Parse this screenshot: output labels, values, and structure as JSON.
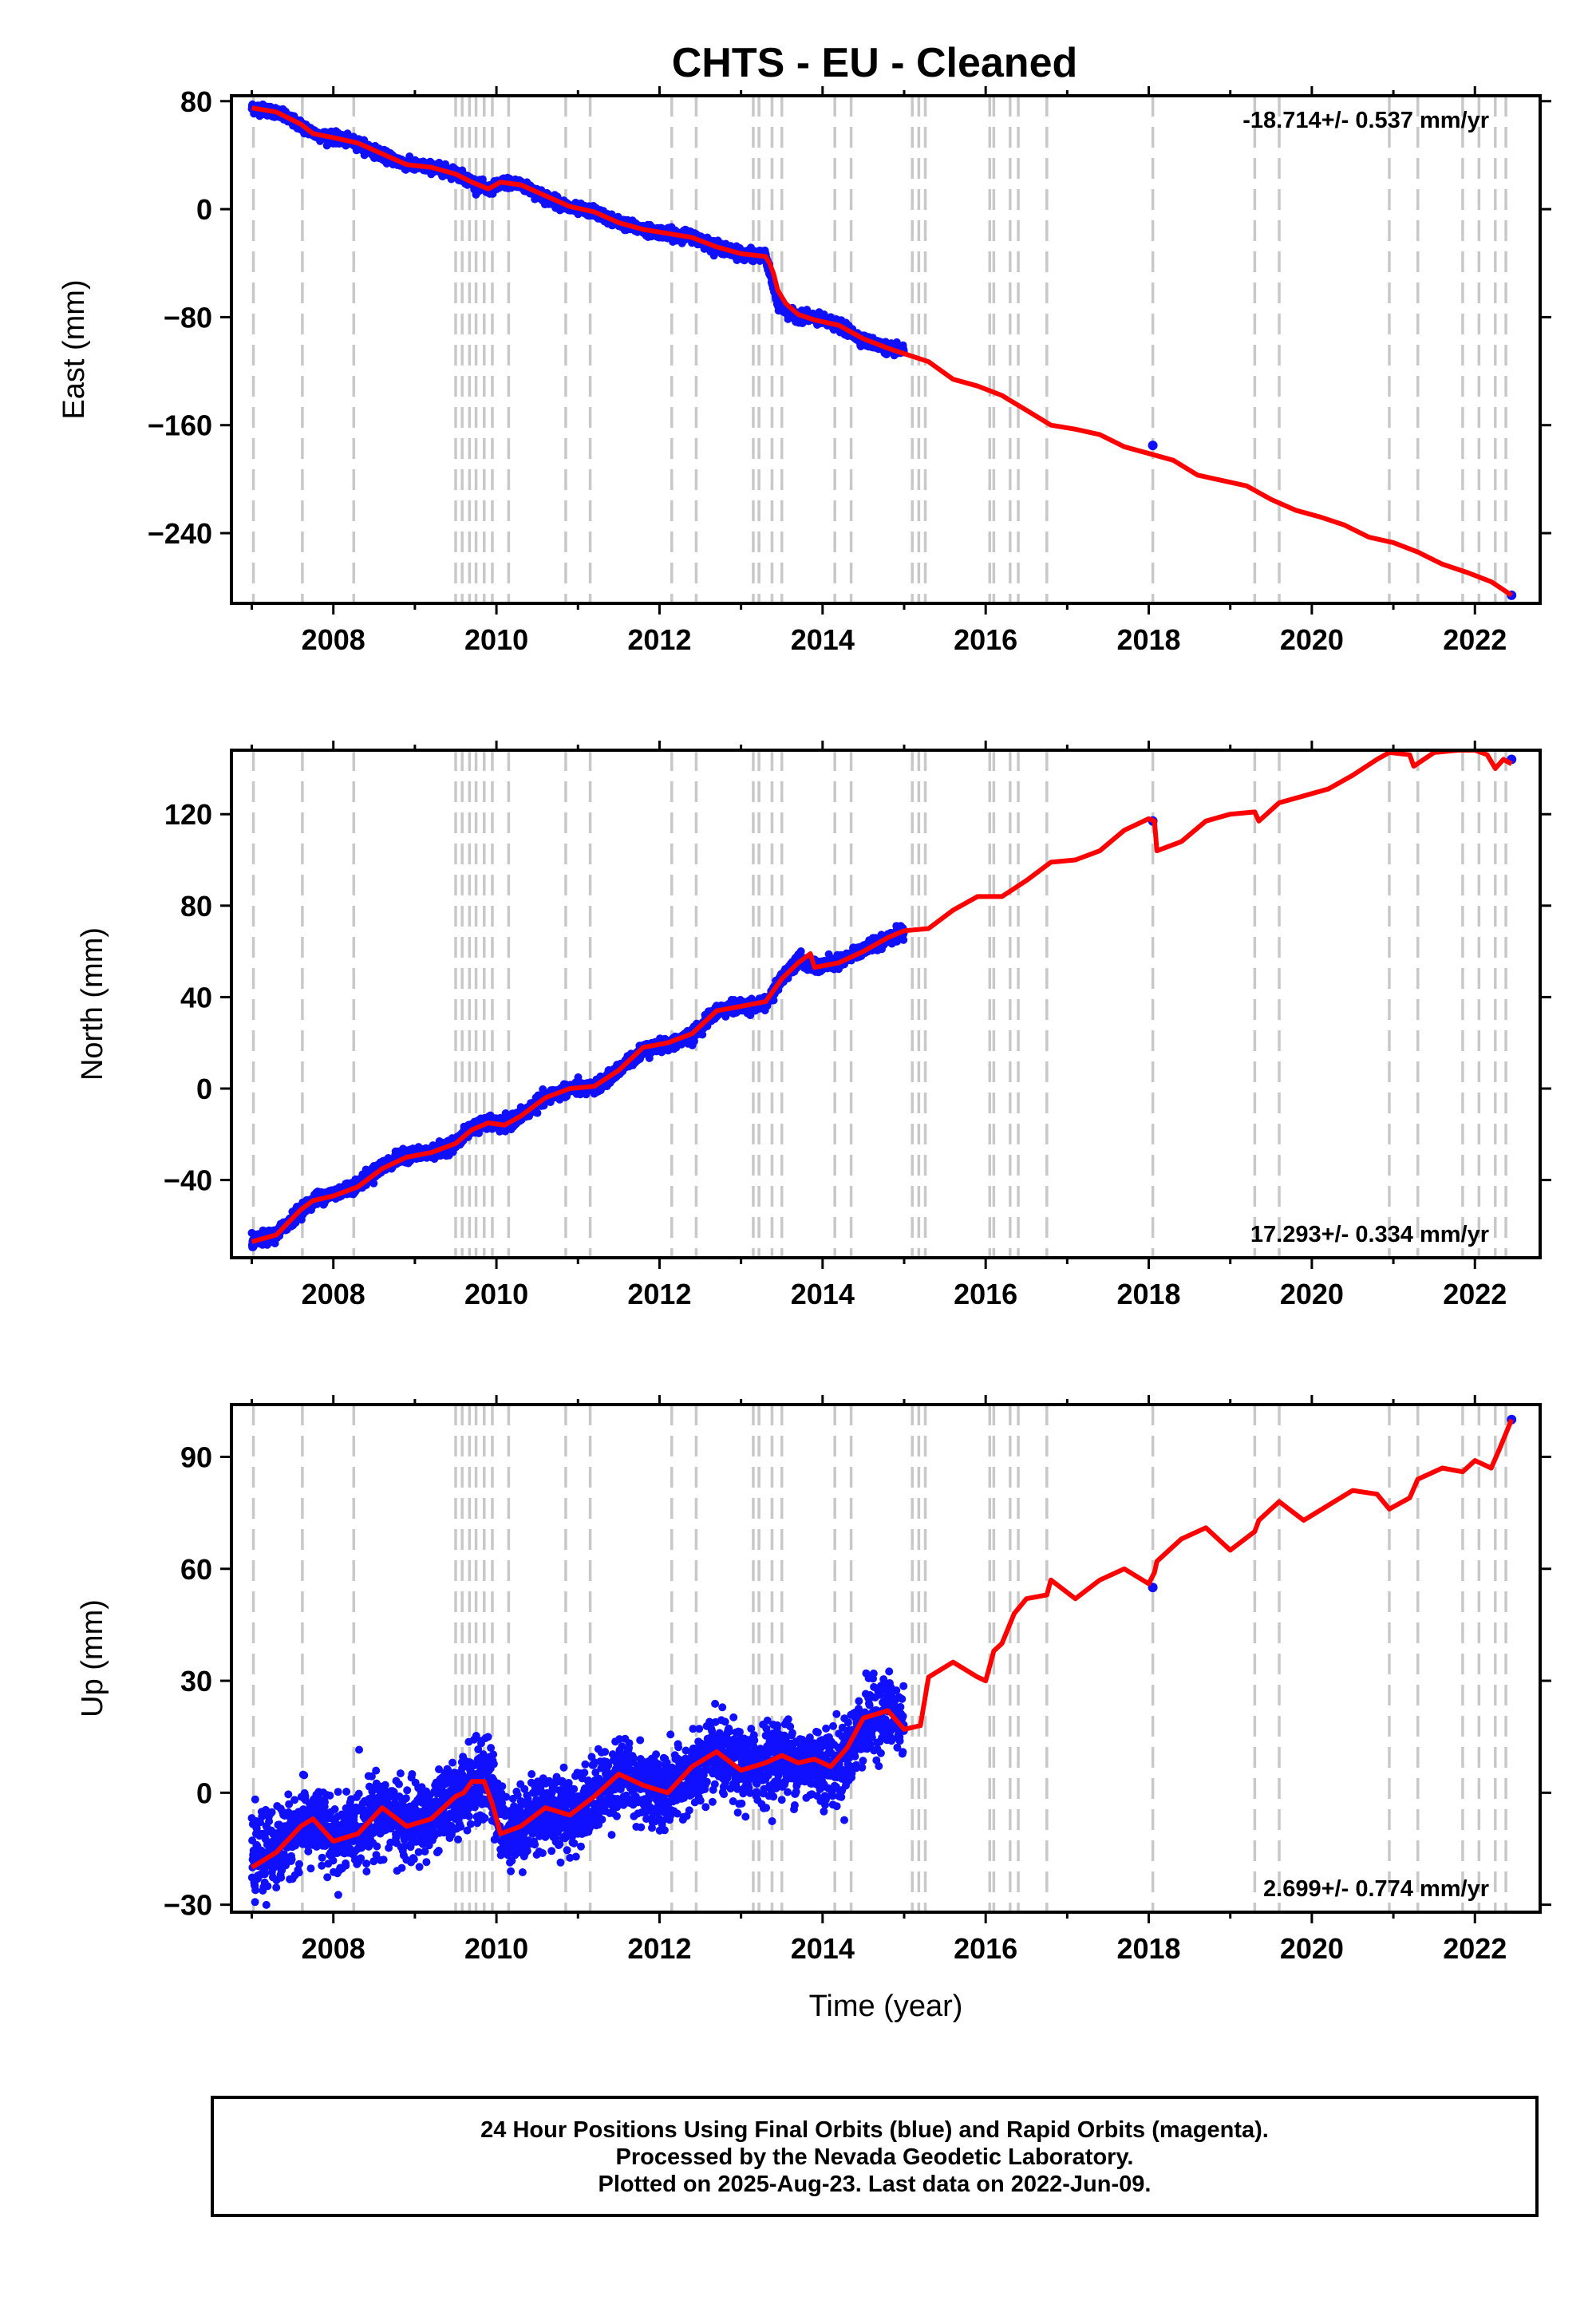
{
  "chart_data": [
    {
      "type": "line",
      "title": "CHTS  - EU - Cleaned",
      "ylabel": "East (mm)",
      "xlabel": "",
      "rate": "-18.714+/- 0.537 mm/yr",
      "rate_pos": "top-right",
      "xlim": [
        2006.75,
        2022.8
      ],
      "ylim": [
        -292,
        84
      ],
      "yticks": [
        80,
        0,
        -80,
        -160,
        -240
      ],
      "xticks": [
        2008,
        2010,
        2012,
        2014,
        2016,
        2018,
        2020,
        2022
      ],
      "grid": false,
      "series": [
        {
          "color": "#1010ff",
          "style": "points",
          "x": [
            2007.0,
            2007.3,
            2007.6,
            2007.8,
            2008.0,
            2008.3,
            2008.6,
            2008.9,
            2009.2,
            2009.5,
            2009.7,
            2009.9,
            2010.1,
            2010.3,
            2010.6,
            2010.9,
            2011.2,
            2011.5,
            2011.8,
            2012.1,
            2012.4,
            2012.7,
            2013.0,
            2013.3,
            2013.45,
            2013.6,
            2013.9,
            2014.2,
            2014.5,
            2014.8,
            2015.0,
            2018.05,
            2022.45
          ],
          "y": [
            75,
            72,
            62,
            55,
            53,
            49,
            40,
            33,
            31,
            27,
            20,
            14,
            20,
            18,
            9,
            1,
            -2,
            -10,
            -15,
            -18,
            -20,
            -28,
            -33,
            -35,
            -70,
            -78,
            -81,
            -86,
            -97,
            -103,
            -105,
            -175,
            -286
          ],
          "spread": [
            3.5,
            3.5,
            3.5,
            3.5,
            3.5,
            3.5,
            3.5,
            3.5,
            3.5,
            3.5,
            3.5,
            3.5,
            3.5,
            3.5,
            3.5,
            3.5,
            3.5,
            3.5,
            3.5,
            3.5,
            3.5,
            3.5,
            3.5,
            3.5,
            3.5,
            3.5,
            3.5,
            3.5,
            3.5,
            3.5,
            3.5,
            0,
            0
          ]
        },
        {
          "color": "#ff0000",
          "style": "line",
          "x": [
            2007.0,
            2007.3,
            2007.6,
            2007.75,
            2008.0,
            2008.3,
            2008.6,
            2008.9,
            2009.2,
            2009.5,
            2009.7,
            2009.9,
            2010.05,
            2010.3,
            2010.6,
            2010.9,
            2011.2,
            2011.5,
            2011.8,
            2012.1,
            2012.4,
            2012.7,
            2013.0,
            2013.3,
            2013.35,
            2013.4,
            2013.45,
            2013.55,
            2013.7,
            2013.9,
            2014.2,
            2014.5,
            2014.8,
            2015.0,
            2015.3,
            2015.6,
            2015.9,
            2016.2,
            2016.5,
            2016.8,
            2017.1,
            2017.4,
            2017.7,
            2018.0,
            2018.3,
            2018.6,
            2018.9,
            2019.2,
            2019.5,
            2019.8,
            2020.1,
            2020.4,
            2020.7,
            2021.0,
            2021.3,
            2021.6,
            2021.9,
            2022.2,
            2022.45
          ],
          "y": [
            75,
            72,
            63,
            56,
            53,
            49,
            41,
            33,
            31,
            26,
            20,
            15,
            20,
            18,
            10,
            2,
            -2,
            -10,
            -15,
            -18,
            -21,
            -28,
            -33,
            -35,
            -40,
            -48,
            -60,
            -70,
            -78,
            -82,
            -86,
            -96,
            -103,
            -107,
            -113,
            -126,
            -131,
            -138,
            -149,
            -160,
            -163,
            -167,
            -176,
            -181,
            -186,
            -197,
            -201,
            -205,
            -215,
            -223,
            -228,
            -234,
            -243,
            -247,
            -254,
            -263,
            -269,
            -276,
            -286
          ]
        }
      ]
    },
    {
      "type": "line",
      "title": "",
      "ylabel": "North (mm)",
      "xlabel": "",
      "rate": "17.293+/- 0.334 mm/yr",
      "rate_pos": "bottom-right",
      "xlim": [
        2006.75,
        2022.8
      ],
      "ylim": [
        -74,
        148
      ],
      "yticks": [
        120,
        80,
        40,
        0,
        -40
      ],
      "xticks": [
        2008,
        2010,
        2012,
        2014,
        2016,
        2018,
        2020,
        2022
      ],
      "grid": false,
      "series": [
        {
          "color": "#1010ff",
          "style": "points",
          "x": [
            2007.0,
            2007.3,
            2007.6,
            2007.8,
            2008.0,
            2008.3,
            2008.6,
            2008.9,
            2009.2,
            2009.5,
            2009.7,
            2009.9,
            2010.1,
            2010.3,
            2010.6,
            2010.9,
            2011.2,
            2011.5,
            2011.8,
            2012.1,
            2012.4,
            2012.7,
            2013.0,
            2013.3,
            2013.5,
            2013.7,
            2013.9,
            2014.2,
            2014.5,
            2014.8,
            2015.0,
            2018.05,
            2022.45
          ],
          "y": [
            -67,
            -64,
            -53,
            -48,
            -46,
            -42,
            -34,
            -29,
            -28,
            -24,
            -17,
            -15,
            -16,
            -12,
            -4,
            0,
            0,
            8,
            17,
            19,
            23,
            34,
            36,
            37,
            48,
            57,
            53,
            55,
            61,
            66,
            68,
            117,
            144
          ],
          "spread": [
            2.5,
            2.5,
            2.5,
            2.5,
            2.5,
            2.5,
            2.5,
            2.5,
            2.5,
            2.5,
            2.5,
            2.5,
            2.5,
            2.5,
            2.5,
            2.5,
            2.5,
            2.5,
            2.5,
            2.5,
            2.5,
            2.5,
            2.5,
            2.5,
            2.5,
            2.5,
            2.5,
            2.5,
            2.5,
            2.5,
            2.5,
            0,
            0
          ]
        },
        {
          "color": "#ff0000",
          "style": "line",
          "x": [
            2007.0,
            2007.3,
            2007.6,
            2007.75,
            2008.0,
            2008.3,
            2008.6,
            2008.9,
            2009.2,
            2009.5,
            2009.7,
            2009.9,
            2010.1,
            2010.3,
            2010.6,
            2010.9,
            2011.2,
            2011.5,
            2011.8,
            2012.1,
            2012.4,
            2012.7,
            2013.0,
            2013.3,
            2013.5,
            2013.7,
            2013.85,
            2013.9,
            2014.2,
            2014.5,
            2014.8,
            2015.0,
            2015.3,
            2015.6,
            2015.9,
            2016.2,
            2016.5,
            2016.8,
            2017.1,
            2017.4,
            2017.7,
            2018.0,
            2018.07,
            2018.1,
            2018.4,
            2018.7,
            2019.0,
            2019.3,
            2019.35,
            2019.6,
            2019.9,
            2020.2,
            2020.5,
            2020.8,
            2020.95,
            2021.2,
            2021.25,
            2021.5,
            2021.8,
            2022.0,
            2022.15,
            2022.25,
            2022.35,
            2022.45
          ],
          "y": [
            -67,
            -64,
            -53,
            -49,
            -47,
            -43,
            -35,
            -30,
            -28,
            -24,
            -18,
            -15,
            -16,
            -12,
            -4,
            0,
            1,
            8,
            18,
            20,
            24,
            34,
            36,
            38,
            48,
            55,
            59,
            53,
            55,
            60,
            66,
            69,
            70,
            78,
            84,
            84,
            91,
            99,
            100,
            104,
            113,
            118,
            117,
            104,
            108,
            117,
            120,
            121,
            117,
            125,
            128,
            131,
            137,
            144,
            147,
            146,
            141,
            147,
            148,
            148,
            146,
            140,
            144,
            142
          ]
        }
      ]
    },
    {
      "type": "line",
      "title": "",
      "ylabel": "Up (mm)",
      "xlabel": "Time (year)",
      "rate": "2.699+/- 0.774 mm/yr",
      "rate_pos": "bottom-right",
      "xlim": [
        2006.75,
        2022.8
      ],
      "ylim": [
        -32,
        104
      ],
      "yticks": [
        90,
        60,
        30,
        0,
        -30
      ],
      "xticks": [
        2008,
        2010,
        2012,
        2014,
        2016,
        2018,
        2020,
        2022
      ],
      "grid": false,
      "series": [
        {
          "color": "#1010ff",
          "style": "points",
          "x": [
            2007.0,
            2007.3,
            2007.6,
            2007.8,
            2008.0,
            2008.3,
            2008.6,
            2008.9,
            2009.2,
            2009.5,
            2009.7,
            2009.9,
            2010.1,
            2010.3,
            2010.6,
            2010.9,
            2011.2,
            2011.5,
            2011.8,
            2012.1,
            2012.4,
            2012.7,
            2013.0,
            2013.3,
            2013.5,
            2013.7,
            2013.9,
            2014.2,
            2014.5,
            2014.8,
            2015.0,
            2018.05,
            2022.45
          ],
          "y": [
            -18,
            -15,
            -9,
            -8,
            -13,
            -10,
            -4,
            -9,
            -7,
            -1,
            2,
            4,
            -10,
            -9,
            -4,
            -6,
            -1,
            5,
            2,
            0,
            5,
            10,
            6,
            8,
            10,
            8,
            8,
            7,
            18,
            22,
            18,
            55,
            100
          ],
          "spread": [
            9,
            9,
            9,
            9,
            9,
            9,
            9,
            9,
            9,
            9,
            9,
            9,
            9,
            9,
            9,
            9,
            9,
            9,
            9,
            9,
            9,
            9,
            9,
            9,
            9,
            9,
            9,
            9,
            9,
            9,
            9,
            0,
            0
          ]
        },
        {
          "color": "#ff0000",
          "style": "line",
          "x": [
            2007.0,
            2007.3,
            2007.6,
            2007.75,
            2008.0,
            2008.3,
            2008.6,
            2008.9,
            2009.2,
            2009.5,
            2009.6,
            2009.7,
            2009.85,
            2009.95,
            2010.05,
            2010.3,
            2010.6,
            2010.9,
            2011.2,
            2011.5,
            2011.8,
            2012.1,
            2012.4,
            2012.7,
            2013.0,
            2013.3,
            2013.5,
            2013.7,
            2013.9,
            2014.1,
            2014.3,
            2014.5,
            2014.8,
            2015.0,
            2015.2,
            2015.3,
            2015.6,
            2015.9,
            2016.0,
            2016.1,
            2016.2,
            2016.35,
            2016.5,
            2016.75,
            2016.8,
            2017.1,
            2017.4,
            2017.7,
            2018.0,
            2018.07,
            2018.1,
            2018.4,
            2018.7,
            2019.0,
            2019.3,
            2019.35,
            2019.6,
            2019.9,
            2020.2,
            2020.5,
            2020.8,
            2020.95,
            2021.2,
            2021.3,
            2021.6,
            2021.85,
            2022.0,
            2022.2,
            2022.3,
            2022.45
          ],
          "y": [
            -20,
            -16,
            -9,
            -7,
            -13,
            -11,
            -4,
            -9,
            -7,
            -1,
            0,
            3,
            3,
            -3,
            -11,
            -9,
            -4,
            -6,
            -1,
            5,
            2,
            0,
            7,
            11,
            6,
            8,
            10,
            8,
            9,
            7,
            12,
            20,
            22,
            17,
            18,
            31,
            35,
            31,
            30,
            38,
            40,
            48,
            52,
            53,
            57,
            52,
            57,
            60,
            56,
            59,
            62,
            68,
            71,
            65,
            70,
            73,
            78,
            73,
            77,
            81,
            80,
            76,
            79,
            84,
            87,
            86,
            89,
            87,
            92,
            100
          ]
        }
      ]
    }
  ],
  "events": [
    2007.02,
    2007.62,
    2008.25,
    2009.5,
    2009.58,
    2009.67,
    2009.75,
    2009.85,
    2009.95,
    2010.15,
    2010.85,
    2011.15,
    2012.15,
    2012.45,
    2013.15,
    2013.22,
    2013.38,
    2013.5,
    2014.15,
    2014.35,
    2015.1,
    2015.18,
    2015.26,
    2016.05,
    2016.1,
    2016.3,
    2016.4,
    2016.75,
    2018.05,
    2019.3,
    2019.6,
    2020.95,
    2021.3,
    2021.85,
    2022.05,
    2022.25,
    2022.38
  ],
  "footer": {
    "line1": "24 Hour Positions Using Final Orbits (blue) and Rapid Orbits (magenta).",
    "line2": "Processed by the Nevada Geodetic Laboratory.",
    "line3": "Plotted on 2025-Aug-23. Last data on 2022-Jun-09."
  }
}
